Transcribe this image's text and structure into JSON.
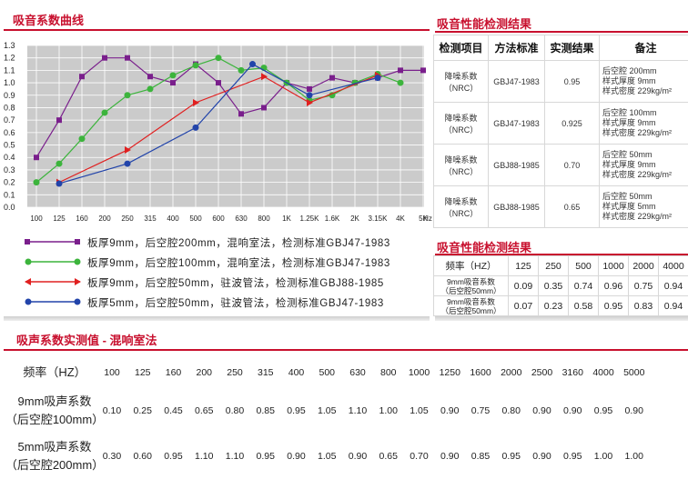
{
  "chart_title": "吸音系数曲线",
  "chart_data": {
    "type": "line",
    "title": "吸音系数曲线",
    "categories": [
      "100",
      "125",
      "160",
      "200",
      "250",
      "315",
      "400",
      "500",
      "600",
      "630",
      "800",
      "1K",
      "1.25K",
      "1.6K",
      "2K",
      "3.15K",
      "4K",
      "5K"
    ],
    "x_unit": "Hz",
    "ylim": [
      0,
      1.3
    ],
    "yticks": [
      "0.0",
      "0.1",
      "0.2",
      "0.3",
      "0.4",
      "0.5",
      "0.6",
      "0.7",
      "0.8",
      "0.9",
      "1.0",
      "1.1",
      "1.2",
      "1.3"
    ],
    "grid": true,
    "series": [
      {
        "name": "板厚9mm，后空腔200mm，混响室法，检测标准GBJ47-1983",
        "color": "#7a1f8c",
        "marker": "square",
        "values": [
          0.4,
          0.7,
          1.05,
          1.2,
          1.2,
          1.05,
          1.0,
          1.15,
          1.0,
          0.75,
          0.8,
          1.0,
          0.95,
          1.04,
          1.0,
          1.04,
          1.1,
          1.1
        ]
      },
      {
        "name": "板厚9mm，后空腔100mm，混响室法，检测标准GBJ47-1983",
        "color": "#3cb43c",
        "marker": "circle",
        "values": [
          0.2,
          0.35,
          0.55,
          0.76,
          0.9,
          0.95,
          1.06,
          1.14,
          1.2,
          1.1,
          1.12,
          1.0,
          0.86,
          0.9,
          1.0,
          1.07,
          1.0,
          null
        ]
      },
      {
        "name": "板厚9mm，后空腔50mm，驻波管法，检测标准GBJ88-1985",
        "color": "#e02020",
        "marker": "triangle",
        "points": [
          [
            1,
            0.2
          ],
          [
            4,
            0.46
          ],
          [
            7,
            0.84
          ],
          [
            10,
            1.05
          ],
          [
            12,
            0.84
          ],
          [
            15,
            1.06
          ]
        ]
      },
      {
        "name": "板厚5mm，后空腔50mm，驻波管法，检测标准GBJ47-1983",
        "color": "#2244aa",
        "marker": "circle",
        "points": [
          [
            1,
            0.19
          ],
          [
            4,
            0.35
          ],
          [
            7,
            0.64
          ],
          [
            9.5,
            1.15
          ],
          [
            12,
            0.9
          ],
          [
            15,
            1.04
          ]
        ]
      }
    ]
  },
  "perf_title": "吸音性能检测结果",
  "perf_table": {
    "headers": [
      "检测项目",
      "方法标准",
      "实测结果",
      "备注"
    ],
    "rows": [
      {
        "item1": "降噪系数",
        "item2": "（NRC）",
        "method": "GBJ47-1983",
        "result": "0.95",
        "note1": "后空腔 200mm",
        "note2": "样式厚度 9mm",
        "note3": "样式密度 229kg/m²"
      },
      {
        "item1": "降噪系数",
        "item2": "（NRC）",
        "method": "GBJ47-1983",
        "result": "0.925",
        "note1": "后空腔 100mm",
        "note2": "样式厚度 9mm",
        "note3": "样式密度 229kg/m²"
      },
      {
        "item1": "降噪系数",
        "item2": "（NRC）",
        "method": "GBJ88-1985",
        "result": "0.70",
        "note1": "后空腔 50mm",
        "note2": "样式厚度 9mm",
        "note3": "样式密度 229kg/m²"
      },
      {
        "item1": "降噪系数",
        "item2": "（NRC）",
        "method": "GBJ88-1985",
        "result": "0.65",
        "note1": "后空腔 50mm",
        "note2": "样式厚度 5mm",
        "note3": "样式密度 229kg/m²"
      }
    ]
  },
  "perf2_title": "吸音性能检测结果",
  "perf2_table": {
    "header_label": "频率（HZ）",
    "frequencies": [
      "125",
      "250",
      "500",
      "1000",
      "2000",
      "4000"
    ],
    "rows": [
      {
        "label1": "9mm吸音系数",
        "label2": "（后空腔50mm）",
        "values": [
          "0.09",
          "0.35",
          "0.74",
          "0.96",
          "0.75",
          "0.94"
        ]
      },
      {
        "label1": "9mm吸音系数",
        "label2": "（后空腔50mm）",
        "values": [
          "0.07",
          "0.23",
          "0.58",
          "0.95",
          "0.83",
          "0.94"
        ]
      }
    ]
  },
  "meas_title": "吸声系数实测值 - 混响室法",
  "meas_table": {
    "freq_label": "频率（HZ）",
    "frequencies": [
      "100",
      "125",
      "160",
      "200",
      "250",
      "315",
      "400",
      "500",
      "630",
      "800",
      "1000",
      "1250",
      "1600",
      "2000",
      "2500",
      "3160",
      "4000",
      "5000"
    ],
    "rows": [
      {
        "label1": "9mm吸声系数",
        "label2": "（后空腔100mm）",
        "values": [
          "0.10",
          "0.25",
          "0.45",
          "0.65",
          "0.80",
          "0.85",
          "0.95",
          "1.05",
          "1.10",
          "1.00",
          "1.05",
          "0.90",
          "0.75",
          "0.80",
          "0.90",
          "0.90",
          "0.95",
          "0.90"
        ]
      },
      {
        "label1": "5mm吸声系数",
        "label2": "（后空腔200mm）",
        "values": [
          "0.30",
          "0.60",
          "0.95",
          "1.10",
          "1.10",
          "0.95",
          "0.90",
          "1.05",
          "0.90",
          "0.65",
          "0.70",
          "0.90",
          "0.85",
          "0.95",
          "0.90",
          "0.95",
          "1.00",
          "1.00"
        ]
      }
    ]
  },
  "colors": {
    "accent": "#c8102e",
    "plot_bg": "#cbcbcb"
  }
}
